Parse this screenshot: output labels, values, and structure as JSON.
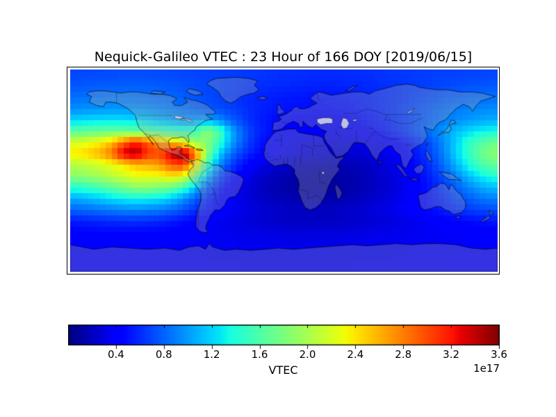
{
  "chart_data": {
    "type": "heatmap",
    "title": "Nequick-Galileo VTEC : 23 Hour of 166 DOY [2019/06/15]",
    "projection": "equirectangular",
    "lon_range": [
      -180,
      180
    ],
    "lat_range": [
      -90,
      90
    ],
    "grid_shape": [
      18,
      36
    ],
    "lat_centers_start": 85,
    "lat_step": -10,
    "lon_centers_start": -175,
    "lon_step": 10,
    "values_unit": "1e17",
    "colormap": "jet",
    "colorbar": {
      "label": "VTEC",
      "offset_text": "1e17",
      "orientation": "horizontal",
      "vmin": 0.0,
      "vmax": 3.6,
      "ticks": [
        "0.4",
        "0.8",
        "1.2",
        "1.6",
        "2.0",
        "2.4",
        "2.8",
        "3.2",
        "3.6"
      ]
    },
    "values": [
      [
        0.7,
        0.7,
        0.71,
        0.71,
        0.72,
        0.72,
        0.72,
        0.71,
        0.71,
        0.7,
        0.69,
        0.68,
        0.67,
        0.66,
        0.65,
        0.64,
        0.63,
        0.62,
        0.61,
        0.61,
        0.6,
        0.6,
        0.6,
        0.61,
        0.61,
        0.62,
        0.63,
        0.64,
        0.65,
        0.66,
        0.67,
        0.68,
        0.68,
        0.69,
        0.69,
        0.7
      ],
      [
        0.76,
        0.77,
        0.78,
        0.78,
        0.79,
        0.79,
        0.78,
        0.77,
        0.76,
        0.74,
        0.72,
        0.7,
        0.68,
        0.66,
        0.64,
        0.62,
        0.6,
        0.59,
        0.58,
        0.57,
        0.56,
        0.56,
        0.56,
        0.57,
        0.58,
        0.59,
        0.61,
        0.62,
        0.64,
        0.66,
        0.68,
        0.7,
        0.72,
        0.74,
        0.75,
        0.76
      ],
      [
        0.84,
        0.85,
        0.86,
        0.87,
        0.87,
        0.86,
        0.85,
        0.83,
        0.81,
        0.78,
        0.74,
        0.71,
        0.67,
        0.64,
        0.61,
        0.58,
        0.56,
        0.54,
        0.53,
        0.52,
        0.51,
        0.51,
        0.52,
        0.53,
        0.55,
        0.57,
        0.59,
        0.62,
        0.65,
        0.69,
        0.72,
        0.76,
        0.79,
        0.81,
        0.83,
        0.84
      ],
      [
        0.95,
        0.97,
        0.98,
        0.99,
        0.99,
        0.98,
        0.96,
        0.93,
        0.89,
        0.85,
        0.8,
        0.76,
        0.72,
        0.68,
        0.63,
        0.58,
        0.55,
        0.52,
        0.5,
        0.49,
        0.48,
        0.48,
        0.49,
        0.51,
        0.53,
        0.56,
        0.6,
        0.64,
        0.69,
        0.74,
        0.79,
        0.84,
        0.88,
        0.91,
        0.93,
        0.94
      ],
      [
        1.2,
        1.22,
        1.24,
        1.25,
        1.24,
        1.22,
        1.18,
        1.12,
        1.06,
        1.0,
        1.0,
        1.05,
        0.95,
        0.8,
        0.68,
        0.58,
        0.52,
        0.47,
        0.45,
        0.43,
        0.42,
        0.42,
        0.43,
        0.45,
        0.48,
        0.52,
        0.56,
        0.61,
        0.67,
        0.74,
        0.81,
        0.88,
        0.94,
        0.99,
        1.03,
        1.06
      ],
      [
        1.65,
        1.68,
        1.7,
        1.72,
        1.7,
        1.66,
        1.6,
        1.54,
        1.48,
        1.45,
        1.5,
        1.9,
        1.6,
        1.1,
        0.8,
        0.62,
        0.53,
        0.46,
        0.42,
        0.39,
        0.38,
        0.37,
        0.38,
        0.4,
        0.43,
        0.47,
        0.52,
        0.59,
        0.67,
        0.77,
        0.88,
        1.0,
        1.12,
        1.22,
        1.3,
        1.36
      ],
      [
        2.2,
        2.26,
        2.35,
        2.55,
        2.9,
        3.2,
        2.95,
        2.7,
        2.55,
        2.35,
        1.9,
        1.85,
        1.5,
        1.05,
        0.78,
        0.58,
        0.47,
        0.41,
        0.37,
        0.34,
        0.32,
        0.31,
        0.3,
        0.3,
        0.32,
        0.34,
        0.38,
        0.44,
        0.52,
        0.62,
        0.76,
        0.95,
        1.18,
        1.45,
        1.6,
        1.72
      ],
      [
        2.4,
        2.5,
        2.62,
        2.85,
        3.35,
        3.5,
        3.1,
        3.0,
        3.4,
        3.6,
        2.95,
        1.9,
        1.2,
        0.85,
        0.65,
        0.52,
        0.44,
        0.38,
        0.34,
        0.31,
        0.28,
        0.27,
        0.26,
        0.26,
        0.28,
        0.3,
        0.34,
        0.4,
        0.47,
        0.57,
        0.72,
        0.92,
        1.2,
        1.45,
        1.7,
        1.85
      ],
      [
        2.05,
        2.1,
        2.18,
        2.28,
        2.4,
        2.55,
        2.6,
        2.7,
        2.95,
        3.05,
        2.45,
        1.55,
        0.95,
        0.68,
        0.5,
        0.38,
        0.3,
        0.26,
        0.22,
        0.19,
        0.17,
        0.16,
        0.16,
        0.17,
        0.19,
        0.22,
        0.27,
        0.33,
        0.41,
        0.52,
        0.66,
        0.85,
        1.08,
        1.35,
        1.55,
        1.68
      ],
      [
        1.85,
        1.9,
        1.96,
        2.06,
        2.16,
        2.26,
        2.26,
        2.26,
        2.36,
        2.26,
        1.75,
        1.12,
        0.72,
        0.52,
        0.38,
        0.28,
        0.22,
        0.17,
        0.14,
        0.12,
        0.11,
        0.11,
        0.12,
        0.14,
        0.17,
        0.21,
        0.26,
        0.31,
        0.38,
        0.47,
        0.58,
        0.73,
        0.9,
        1.1,
        1.26,
        1.38
      ],
      [
        1.42,
        1.48,
        1.56,
        1.66,
        1.76,
        1.86,
        1.86,
        1.8,
        1.72,
        1.52,
        1.15,
        0.8,
        0.56,
        0.42,
        0.32,
        0.25,
        0.19,
        0.15,
        0.12,
        0.11,
        0.1,
        0.1,
        0.11,
        0.13,
        0.16,
        0.2,
        0.25,
        0.3,
        0.37,
        0.45,
        0.54,
        0.65,
        0.78,
        0.91,
        1.03,
        1.11
      ],
      [
        1.05,
        1.1,
        1.16,
        1.22,
        1.28,
        1.32,
        1.3,
        1.25,
        1.15,
        0.98,
        0.78,
        0.6,
        0.46,
        0.38,
        0.31,
        0.26,
        0.21,
        0.18,
        0.16,
        0.15,
        0.14,
        0.14,
        0.15,
        0.17,
        0.2,
        0.24,
        0.28,
        0.33,
        0.39,
        0.45,
        0.52,
        0.6,
        0.69,
        0.77,
        0.84,
        0.89
      ],
      [
        0.8,
        0.83,
        0.86,
        0.89,
        0.92,
        0.93,
        0.91,
        0.88,
        0.82,
        0.73,
        0.62,
        0.52,
        0.44,
        0.38,
        0.33,
        0.29,
        0.26,
        0.24,
        0.22,
        0.21,
        0.21,
        0.21,
        0.22,
        0.24,
        0.26,
        0.29,
        0.32,
        0.36,
        0.4,
        0.45,
        0.5,
        0.55,
        0.6,
        0.65,
        0.69,
        0.72
      ],
      [
        0.54,
        0.56,
        0.58,
        0.6,
        0.61,
        0.61,
        0.6,
        0.58,
        0.54,
        0.49,
        0.44,
        0.39,
        0.35,
        0.32,
        0.29,
        0.26,
        0.24,
        0.22,
        0.21,
        0.2,
        0.2,
        0.2,
        0.21,
        0.22,
        0.24,
        0.26,
        0.28,
        0.3,
        0.33,
        0.36,
        0.39,
        0.42,
        0.45,
        0.48,
        0.5,
        0.52
      ],
      [
        0.44,
        0.45,
        0.46,
        0.46,
        0.46,
        0.46,
        0.45,
        0.44,
        0.43,
        0.41,
        0.4,
        0.38,
        0.36,
        0.35,
        0.33,
        0.32,
        0.31,
        0.3,
        0.29,
        0.29,
        0.29,
        0.29,
        0.29,
        0.3,
        0.31,
        0.32,
        0.33,
        0.34,
        0.35,
        0.36,
        0.37,
        0.38,
        0.39,
        0.4,
        0.41,
        0.42
      ],
      [
        0.4,
        0.4,
        0.4,
        0.41,
        0.41,
        0.41,
        0.4,
        0.4,
        0.39,
        0.38,
        0.38,
        0.37,
        0.36,
        0.36,
        0.35,
        0.35,
        0.34,
        0.34,
        0.33,
        0.33,
        0.33,
        0.33,
        0.33,
        0.34,
        0.34,
        0.35,
        0.35,
        0.36,
        0.36,
        0.37,
        0.37,
        0.38,
        0.38,
        0.39,
        0.39,
        0.4
      ],
      [
        0.38,
        0.38,
        0.38,
        0.38,
        0.38,
        0.38,
        0.38,
        0.38,
        0.37,
        0.37,
        0.37,
        0.36,
        0.36,
        0.36,
        0.35,
        0.35,
        0.35,
        0.35,
        0.35,
        0.35,
        0.35,
        0.35,
        0.35,
        0.35,
        0.36,
        0.36,
        0.36,
        0.36,
        0.37,
        0.37,
        0.37,
        0.37,
        0.38,
        0.38,
        0.38,
        0.38
      ],
      [
        0.39,
        0.39,
        0.39,
        0.39,
        0.39,
        0.39,
        0.39,
        0.39,
        0.38,
        0.38,
        0.38,
        0.38,
        0.38,
        0.38,
        0.37,
        0.37,
        0.37,
        0.37,
        0.37,
        0.37,
        0.37,
        0.37,
        0.37,
        0.37,
        0.38,
        0.38,
        0.38,
        0.38,
        0.38,
        0.38,
        0.38,
        0.39,
        0.39,
        0.39,
        0.39,
        0.39
      ]
    ]
  },
  "style_colors": {
    "figure_background": "#ffffff",
    "frame_color": "#000000",
    "colorbar_min_color": "#000080",
    "colorbar_max_color": "#800000",
    "land_tint": "rgba(170,170,170,0.30)",
    "lake_fill": "rgba(215,218,235,0.85)"
  }
}
